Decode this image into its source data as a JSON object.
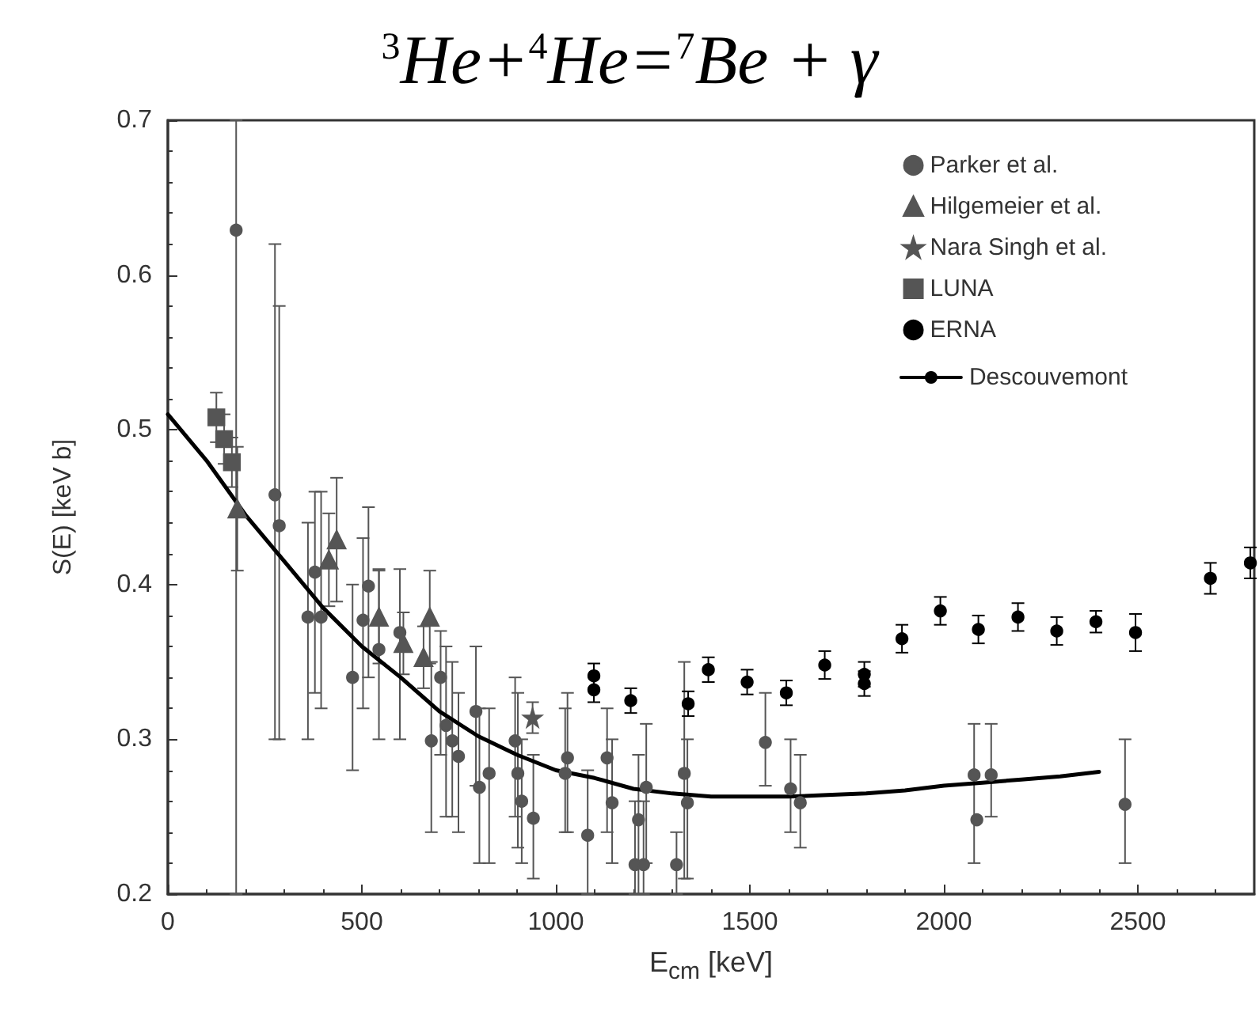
{
  "chart_data": {
    "type": "scatter",
    "title": "$^{3}$He+$^{4}$He=$^{7}$Be + γ",
    "xlabel": "E$_{cm}$ [keV]",
    "ylabel": "S(E) [keV b]",
    "xlim": [
      0,
      2800
    ],
    "ylim": [
      0.2,
      0.7
    ],
    "xticks": [
      0,
      500,
      1000,
      1500,
      2000,
      2500
    ],
    "yticks": [
      0.2,
      0.3,
      0.4,
      0.5,
      0.6,
      0.7
    ],
    "grid": false,
    "legend": "top right",
    "series": [
      {
        "name": "Parker et al.",
        "color": "#555555",
        "marker": "circle",
        "x": [
          176,
          276,
          287,
          361,
          379,
          395,
          476,
          503,
          517,
          544,
          598,
          679,
          703,
          717,
          733,
          749,
          794,
          803,
          828,
          895,
          902,
          912,
          942,
          1024,
          1030,
          1082,
          1132,
          1145,
          1204,
          1213,
          1226,
          1233,
          1311,
          1331,
          1339,
          1540,
          1605,
          1630,
          2078,
          2085,
          2122,
          2467
        ],
        "values": [
          0.629,
          0.458,
          0.438,
          0.379,
          0.408,
          0.379,
          0.34,
          0.377,
          0.399,
          0.358,
          0.369,
          0.299,
          0.34,
          0.309,
          0.299,
          0.289,
          0.318,
          0.269,
          0.278,
          0.299,
          0.278,
          0.26,
          0.249,
          0.278,
          0.288,
          0.238,
          0.288,
          0.259,
          0.219,
          0.248,
          0.219,
          0.269,
          0.219,
          0.278,
          0.259,
          0.298,
          0.268,
          0.259,
          0.277,
          0.248,
          0.277,
          0.258
        ],
        "errors": [
          [
            0.2,
            0.7
          ],
          [
            0.3,
            0.62
          ],
          [
            0.3,
            0.58
          ],
          [
            0.3,
            0.44
          ],
          [
            0.33,
            0.46
          ],
          [
            0.32,
            0.46
          ],
          [
            0.28,
            0.4
          ],
          [
            0.32,
            0.43
          ],
          [
            0.34,
            0.45
          ],
          [
            0.3,
            0.41
          ],
          [
            0.3,
            0.41
          ],
          [
            0.24,
            0.35
          ],
          [
            0.29,
            0.37
          ],
          [
            0.25,
            0.36
          ],
          [
            0.25,
            0.35
          ],
          [
            0.24,
            0.33
          ],
          [
            0.27,
            0.36
          ],
          [
            0.22,
            0.32
          ],
          [
            0.22,
            0.32
          ],
          [
            0.25,
            0.34
          ],
          [
            0.23,
            0.33
          ],
          [
            0.22,
            0.3
          ],
          [
            0.21,
            0.29
          ],
          [
            0.24,
            0.32
          ],
          [
            0.24,
            0.33
          ],
          [
            0.2,
            0.28
          ],
          [
            0.24,
            0.32
          ],
          [
            0.22,
            0.3
          ],
          [
            0.2,
            0.26
          ],
          [
            0.2,
            0.29
          ],
          [
            0.2,
            0.26
          ],
          [
            0.22,
            0.31
          ],
          [
            0.2,
            0.24
          ],
          [
            0.21,
            0.35
          ],
          [
            0.21,
            0.3
          ],
          [
            0.27,
            0.33
          ],
          [
            0.24,
            0.3
          ],
          [
            0.23,
            0.29
          ],
          [
            0.22,
            0.31
          ],
          null,
          [
            0.25,
            0.31
          ],
          [
            0.22,
            0.3
          ]
        ]
      },
      {
        "name": "Hilgemeier et al.",
        "color": "#555555",
        "marker": "triangle",
        "x": [
          179,
          415,
          435,
          544,
          607,
          659,
          675
        ],
        "values": [
          0.449,
          0.416,
          0.429,
          0.379,
          0.362,
          0.353,
          0.379
        ],
        "errors": [
          0.04,
          0.03,
          0.04,
          0.03,
          0.02,
          0.02,
          0.03
        ]
      },
      {
        "name": "Nara Singh et al.",
        "color": "#555555",
        "marker": "star",
        "x": [
          940
        ],
        "values": [
          0.314
        ],
        "errors": [
          0.01
        ]
      },
      {
        "name": "LUNA",
        "color": "#555555",
        "marker": "square",
        "x": [
          125,
          145,
          165
        ],
        "values": [
          0.508,
          0.494,
          0.479
        ],
        "errors": [
          0.016,
          0.016,
          0.016
        ]
      },
      {
        "name": "ERNA",
        "color": "#000000",
        "marker": "circle",
        "x": [
          1098,
          1098,
          1193,
          1341,
          1393,
          1493,
          1594,
          1693,
          1795,
          1795,
          1892,
          1991,
          2089,
          2191,
          2291,
          2392,
          2494,
          2687,
          2790
        ],
        "values": [
          0.341,
          0.332,
          0.325,
          0.323,
          0.345,
          0.337,
          0.33,
          0.348,
          0.342,
          0.336,
          0.365,
          0.383,
          0.371,
          0.379,
          0.37,
          0.376,
          0.369,
          0.404,
          0.414
        ],
        "errors": [
          0.008,
          0.008,
          0.008,
          0.008,
          0.008,
          0.008,
          0.008,
          0.009,
          0.008,
          0.008,
          0.009,
          0.009,
          0.009,
          0.009,
          0.009,
          0.007,
          0.012,
          0.01,
          0.01
        ]
      },
      {
        "name": "Descouvemont",
        "type": "line",
        "color": "#000000",
        "marker": "none",
        "line_style": "solid",
        "x": [
          0,
          100,
          200,
          300,
          400,
          500,
          600,
          700,
          800,
          900,
          1000,
          1100,
          1200,
          1300,
          1400,
          1500,
          1600,
          1700,
          1800,
          1900,
          2000,
          2100,
          2200,
          2300,
          2400
        ],
        "values": [
          0.51,
          0.48,
          0.445,
          0.415,
          0.385,
          0.36,
          0.34,
          0.318,
          0.302,
          0.29,
          0.28,
          0.275,
          0.268,
          0.265,
          0.263,
          0.263,
          0.263,
          0.264,
          0.265,
          0.267,
          0.27,
          0.272,
          0.274,
          0.276,
          0.279
        ]
      }
    ]
  }
}
